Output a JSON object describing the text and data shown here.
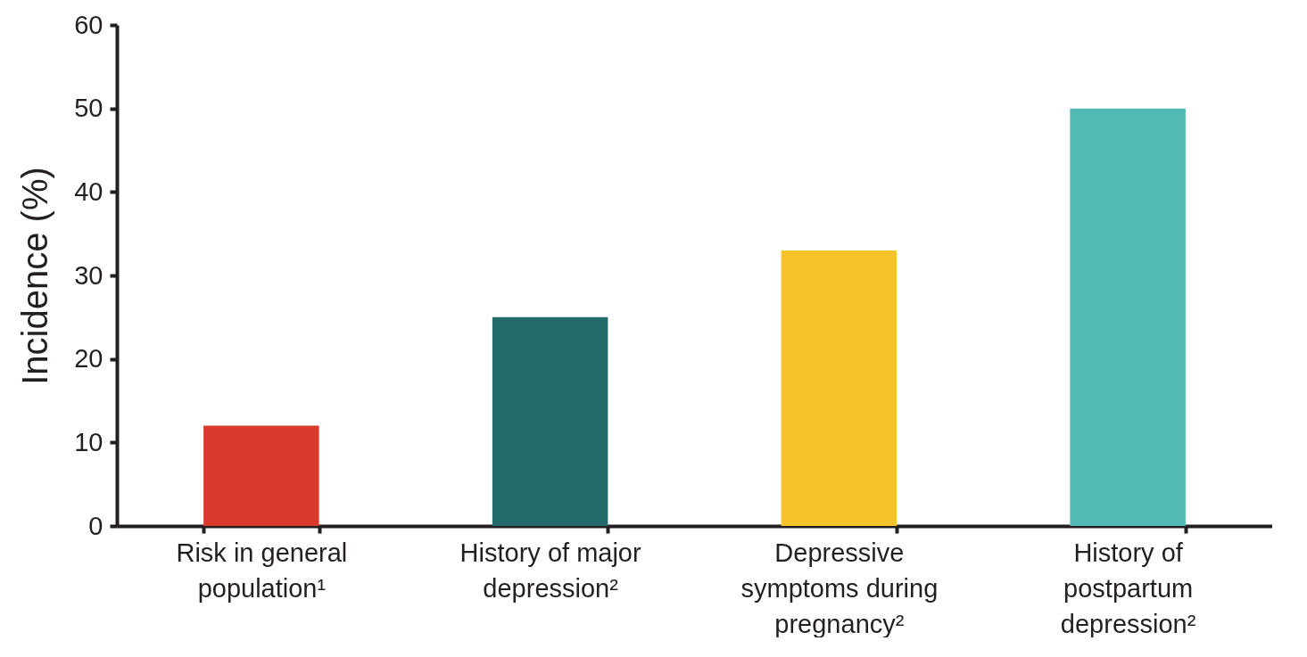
{
  "chart_data": {
    "type": "bar",
    "ylabel": "Incidence (%)",
    "categories": [
      "Risk in general population¹",
      "History of major depression²",
      "Depressive symptoms during pregnancy²",
      "History of postpartum depression²"
    ],
    "values": [
      12,
      25,
      33,
      50
    ],
    "colors": [
      "#d93a2b",
      "#236a6a",
      "#f4c42a",
      "#52b9b4"
    ],
    "ylim": [
      0,
      60
    ],
    "yticks": [
      0,
      10,
      20,
      30,
      40,
      50,
      60
    ],
    "grid": false
  }
}
